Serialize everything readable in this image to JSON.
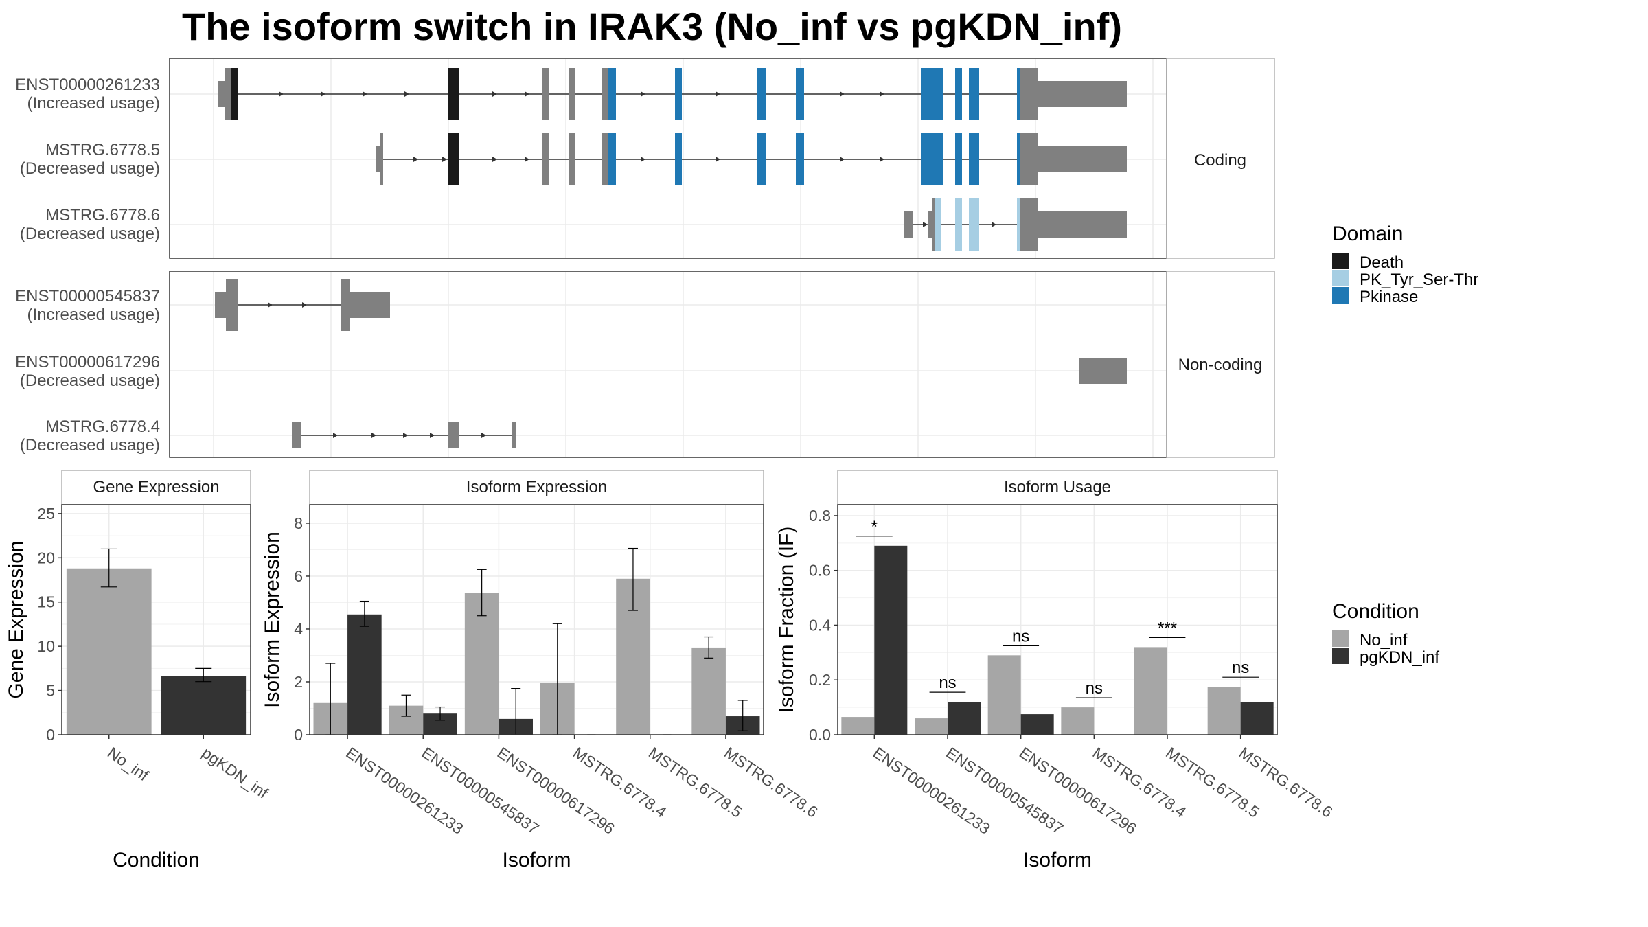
{
  "title": "The isoform switch in IRAK3 (No_inf vs pgKDN_inf)",
  "colors": {
    "Death": "#1a1a1a",
    "PK_Tyr_Ser-Thr": "#a6cee3",
    "Pkinase": "#1f78b4",
    "utr": "#808080",
    "No_inf": "#a6a6a6",
    "pgKDN_inf": "#333333"
  },
  "structure": {
    "groups": [
      {
        "label": "Coding",
        "transcripts": [
          {
            "name": "ENST00000261233",
            "usage": "(Increased usage)"
          },
          {
            "name": "MSTRG.6778.5",
            "usage": "(Decreased usage)"
          },
          {
            "name": "MSTRG.6778.6",
            "usage": "(Decreased usage)"
          }
        ]
      },
      {
        "label": "Non-coding",
        "transcripts": [
          {
            "name": "ENST00000545837",
            "usage": "(Increased usage)"
          },
          {
            "name": "ENST00000617296",
            "usage": "(Decreased usage)"
          },
          {
            "name": "MSTRG.6778.4",
            "usage": "(Decreased usage)"
          }
        ]
      }
    ]
  },
  "legend_domain": {
    "title": "Domain",
    "items": [
      "Death",
      "PK_Tyr_Ser-Thr",
      "Pkinase"
    ]
  },
  "legend_condition": {
    "title": "Condition",
    "items": [
      "No_inf",
      "pgKDN_inf"
    ]
  },
  "chart_data": [
    {
      "type": "bar",
      "title": "Gene Expression",
      "xlabel": "Condition",
      "ylabel": "Gene Expression",
      "ylim": [
        0,
        26
      ],
      "yticks": [
        0,
        5,
        10,
        15,
        20,
        25
      ],
      "categories": [
        "No_inf",
        "pgKDN_inf"
      ],
      "values": [
        18.8,
        6.6
      ],
      "error_low": [
        16.7,
        6.0
      ],
      "error_high": [
        21.0,
        7.5
      ]
    },
    {
      "type": "bar",
      "title": "Isoform Expression",
      "xlabel": "Isoform",
      "ylabel": "Isoform Expression",
      "ylim": [
        0,
        8.7
      ],
      "yticks": [
        0,
        2,
        4,
        6,
        8
      ],
      "categories": [
        "ENST00000261233",
        "ENST00000545837",
        "ENST00000617296",
        "MSTRG.6778.4",
        "MSTRG.6778.5",
        "MSTRG.6778.6"
      ],
      "series": [
        {
          "name": "No_inf",
          "values": [
            1.2,
            1.1,
            5.35,
            1.95,
            5.9,
            3.3
          ],
          "error_low": [
            0.0,
            0.7,
            4.5,
            0.0,
            4.7,
            2.9
          ],
          "error_high": [
            2.7,
            1.5,
            6.25,
            4.2,
            7.05,
            3.7
          ]
        },
        {
          "name": "pgKDN_inf",
          "values": [
            4.55,
            0.8,
            0.6,
            0.0,
            0.0,
            0.7
          ],
          "error_low": [
            4.1,
            0.55,
            0.0,
            0.0,
            0.0,
            0.15
          ],
          "error_high": [
            5.05,
            1.05,
            1.75,
            0.0,
            0.0,
            1.3
          ]
        }
      ]
    },
    {
      "type": "bar",
      "title": "Isoform Usage",
      "xlabel": "Isoform",
      "ylabel": "Isoform Fraction (IF)",
      "ylim": [
        0,
        0.84
      ],
      "yticks": [
        0.0,
        0.2,
        0.4,
        0.6,
        0.8
      ],
      "tick_labels": [
        "0.0",
        "0.2",
        "0.4",
        "0.6",
        "0.8"
      ],
      "categories": [
        "ENST00000261233",
        "ENST00000545837",
        "ENST00000617296",
        "MSTRG.6778.4",
        "MSTRG.6778.5",
        "MSTRG.6778.6"
      ],
      "series": [
        {
          "name": "No_inf",
          "values": [
            0.065,
            0.06,
            0.29,
            0.1,
            0.32,
            0.175
          ]
        },
        {
          "name": "pgKDN_inf",
          "values": [
            0.69,
            0.12,
            0.075,
            0.0,
            0.0,
            0.12
          ]
        }
      ],
      "significance": [
        "*",
        "ns",
        "ns",
        "ns",
        "***",
        "ns"
      ]
    }
  ]
}
